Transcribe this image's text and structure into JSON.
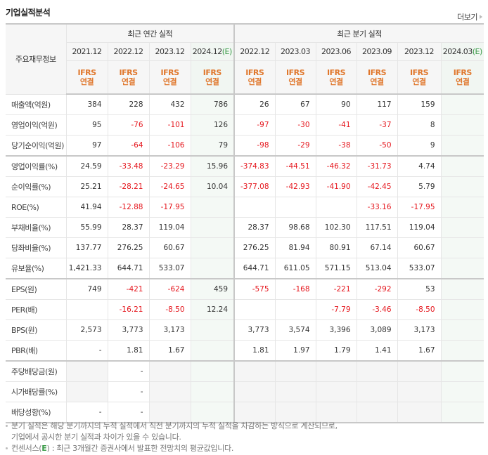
{
  "header": {
    "title": "기업실적분석",
    "more_label": "더보기"
  },
  "table": {
    "corner_label": "주요재무정보",
    "groups": [
      {
        "label": "최근 연간 실적"
      },
      {
        "label": "최근 분기 실적"
      }
    ],
    "estimate_mark": "(E)",
    "columns": [
      {
        "period": "2021.12",
        "est": false,
        "ifrs": "IFRS",
        "basis": "연결"
      },
      {
        "period": "2022.12",
        "est": false,
        "ifrs": "IFRS",
        "basis": "연결"
      },
      {
        "period": "2023.12",
        "est": false,
        "ifrs": "IFRS",
        "basis": "연결"
      },
      {
        "period": "2024.12",
        "est": true,
        "ifrs": "IFRS",
        "basis": "연결"
      },
      {
        "period": "2022.12",
        "est": false,
        "ifrs": "IFRS",
        "basis": "연결"
      },
      {
        "period": "2023.03",
        "est": false,
        "ifrs": "IFRS",
        "basis": "연결"
      },
      {
        "period": "2023.06",
        "est": false,
        "ifrs": "IFRS",
        "basis": "연결"
      },
      {
        "period": "2023.09",
        "est": false,
        "ifrs": "IFRS",
        "basis": "연결"
      },
      {
        "period": "2023.12",
        "est": false,
        "ifrs": "IFRS",
        "basis": "연결"
      },
      {
        "period": "2024.03",
        "est": true,
        "ifrs": "IFRS",
        "basis": "연결"
      }
    ],
    "rows": [
      {
        "label": "매출액(억원)",
        "values": [
          "384",
          "228",
          "432",
          "786",
          "26",
          "67",
          "90",
          "117",
          "159",
          ""
        ]
      },
      {
        "label": "영업이익(억원)",
        "values": [
          "95",
          "-76",
          "-101",
          "126",
          "-97",
          "-30",
          "-41",
          "-37",
          "8",
          ""
        ]
      },
      {
        "label": "당기순이익(억원)",
        "values": [
          "97",
          "-64",
          "-106",
          "79",
          "-98",
          "-29",
          "-38",
          "-50",
          "9",
          ""
        ]
      },
      {
        "label": "영업이익률(%)",
        "values": [
          "24.59",
          "-33.48",
          "-23.29",
          "15.96",
          "-374.83",
          "-44.51",
          "-46.32",
          "-31.73",
          "4.74",
          ""
        ]
      },
      {
        "label": "순이익률(%)",
        "values": [
          "25.21",
          "-28.21",
          "-24.65",
          "10.04",
          "-377.08",
          "-42.93",
          "-41.90",
          "-42.45",
          "5.79",
          ""
        ]
      },
      {
        "label": "ROE(%)",
        "values": [
          "41.94",
          "-12.88",
          "-17.95",
          "",
          "",
          "",
          "",
          "-33.16",
          "-17.95",
          ""
        ]
      },
      {
        "label": "부채비율(%)",
        "values": [
          "55.99",
          "28.37",
          "119.04",
          "",
          "28.37",
          "98.68",
          "102.30",
          "117.51",
          "119.04",
          ""
        ]
      },
      {
        "label": "당좌비율(%)",
        "values": [
          "137.77",
          "276.25",
          "60.67",
          "",
          "276.25",
          "81.94",
          "80.91",
          "67.14",
          "60.67",
          ""
        ]
      },
      {
        "label": "유보율(%)",
        "values": [
          "1,421.33",
          "644.71",
          "533.07",
          "",
          "644.71",
          "611.05",
          "571.15",
          "513.04",
          "533.07",
          ""
        ]
      },
      {
        "label": "EPS(원)",
        "values": [
          "749",
          "-421",
          "-624",
          "459",
          "-575",
          "-168",
          "-221",
          "-292",
          "53",
          ""
        ]
      },
      {
        "label": "PER(배)",
        "values": [
          "",
          "-16.21",
          "-8.50",
          "12.24",
          "",
          "",
          "-7.79",
          "-3.46",
          "-8.50",
          ""
        ]
      },
      {
        "label": "BPS(원)",
        "values": [
          "2,573",
          "3,773",
          "3,173",
          "",
          "3,773",
          "3,574",
          "3,396",
          "3,089",
          "3,173",
          ""
        ]
      },
      {
        "label": "PBR(배)",
        "values": [
          "-",
          "1.81",
          "1.67",
          "",
          "1.81",
          "1.97",
          "1.79",
          "1.41",
          "1.67",
          ""
        ]
      },
      {
        "label": "주당배당금(원)",
        "values": [
          "",
          "-",
          "",
          "",
          "",
          "",
          "",
          "",
          "",
          ""
        ]
      },
      {
        "label": "시가배당률(%)",
        "values": [
          "",
          "-",
          "",
          "",
          "",
          "",
          "",
          "",
          "",
          ""
        ]
      },
      {
        "label": "배당성향(%)",
        "values": [
          "-",
          "-",
          "",
          "",
          "",
          "",
          "",
          "",
          "",
          ""
        ]
      }
    ]
  },
  "notes": {
    "line1": "분기 실적은 해당 분기까지의 누적 실적에서 직전 분기까지의 누적 실적을 차감하는 방식으로 계산되므로,",
    "line2": "기업에서 공시한 분기 실적과 차이가 있을 수 있습니다.",
    "line3_prefix": "컨센서스(",
    "line3_mark": "E",
    "line3_suffix": ") : 최근 3개월간 증권사에서 발표한 전망치의 평균값입니다."
  },
  "colors": {
    "accent_orange": "#e0772c",
    "negative_red": "#e5161d",
    "estimate_green": "#3a9b48",
    "estimate_bg": "#f4f9f5"
  }
}
